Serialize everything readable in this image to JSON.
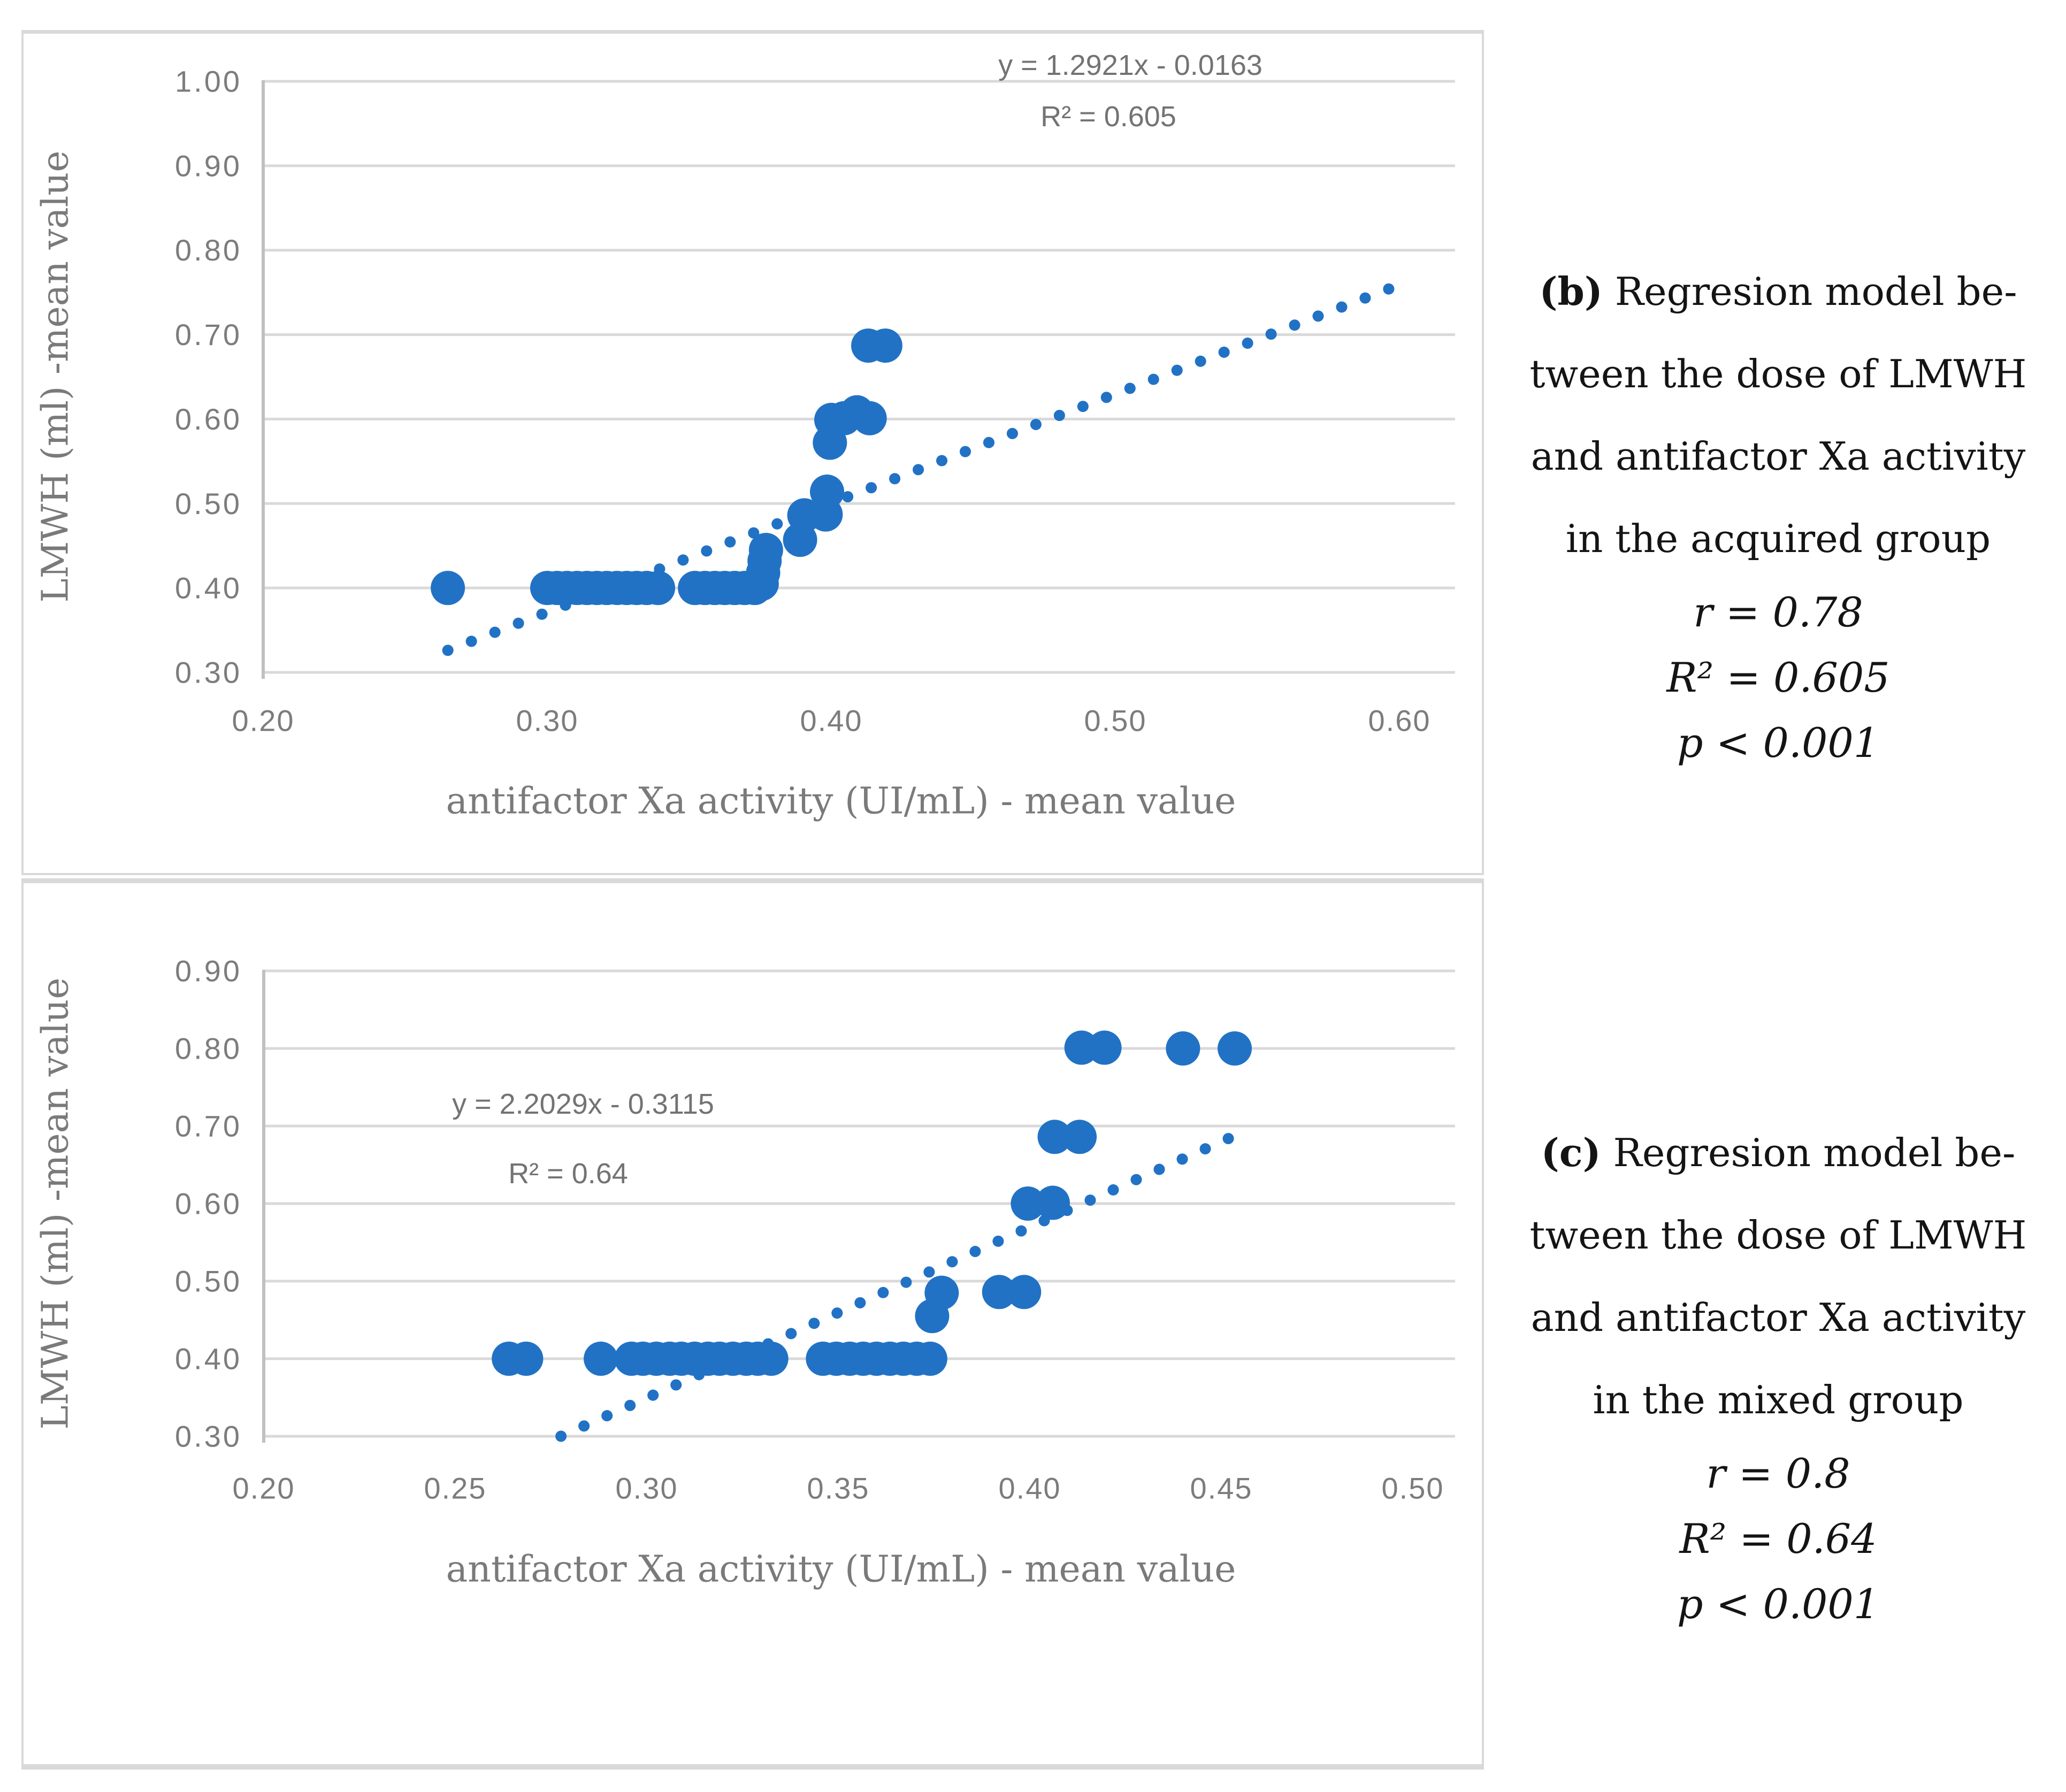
{
  "annotations": {
    "b": {
      "tag": "(b)",
      "lines": [
        " Regresion model be-",
        "tween the dose of LMWH",
        "and antifactor Xa activity",
        "in the acquired group"
      ],
      "stats": [
        "r = 0.78",
        "R² = 0.605",
        "p < 0.001"
      ]
    },
    "c": {
      "tag": "(c)",
      "lines": [
        " Regresion model be-",
        "tween the dose of LMWH",
        "and antifactor Xa activity",
        "in the mixed group"
      ],
      "stats": [
        "r = 0.8",
        "R² = 0.64",
        "p < 0.001"
      ]
    }
  },
  "colors": {
    "marker": "#2172c5",
    "trendline": "#2172c5",
    "gridline": "#d9d9d9",
    "axis_line": "#c0c0c0",
    "tick_text": "#7c7c7c",
    "axis_title_text": "#7a7a7a",
    "equation_text": "#737373"
  },
  "chart_data": [
    {
      "id": "b",
      "type": "scatter",
      "title": "",
      "xlabel": "antifactor Xa activity (UI/mL) - mean value",
      "ylabel": "LMWH (ml) -mean value",
      "xlim": [
        0.2,
        0.6
      ],
      "ylim": [
        0.3,
        1.0
      ],
      "grid": true,
      "xticks": {
        "values": [
          0.2,
          0.3,
          0.4,
          0.5,
          0.6
        ],
        "labels": [
          "0.20",
          "0.30",
          "0.40",
          "0.50",
          "0.60"
        ]
      },
      "yticks": {
        "values": [
          1.0,
          0.9,
          0.8,
          0.7,
          0.6,
          0.5,
          0.4,
          0.3
        ],
        "labels": [
          "1.00",
          "0.90",
          "0.80",
          "0.70",
          "0.60",
          "0.50",
          "0.40",
          "0.30"
        ]
      },
      "equation": "y = 1.2921x - 0.0163",
      "r2_label": "R² = 0.605",
      "trendline": {
        "slope": 1.2921,
        "intercept": -0.0163,
        "x_start": 0.265,
        "x_end": 0.6,
        "style": "dotted"
      },
      "points": [
        [
          0.265,
          0.4
        ],
        [
          0.3,
          0.4
        ],
        [
          0.3035,
          0.4
        ],
        [
          0.307,
          0.4
        ],
        [
          0.3105,
          0.4
        ],
        [
          0.314,
          0.4
        ],
        [
          0.3175,
          0.4
        ],
        [
          0.321,
          0.4
        ],
        [
          0.3245,
          0.4
        ],
        [
          0.328,
          0.4
        ],
        [
          0.3315,
          0.4
        ],
        [
          0.335,
          0.4
        ],
        [
          0.339,
          0.4
        ],
        [
          0.352,
          0.4
        ],
        [
          0.3555,
          0.4
        ],
        [
          0.359,
          0.4
        ],
        [
          0.3625,
          0.4
        ],
        [
          0.366,
          0.4
        ],
        [
          0.3695,
          0.4
        ],
        [
          0.373,
          0.4
        ],
        [
          0.3755,
          0.405
        ],
        [
          0.376,
          0.418
        ],
        [
          0.3765,
          0.432
        ],
        [
          0.377,
          0.445
        ],
        [
          0.389,
          0.457
        ],
        [
          0.3905,
          0.486
        ],
        [
          0.398,
          0.487
        ],
        [
          0.3985,
          0.514
        ],
        [
          0.3995,
          0.572
        ],
        [
          0.4,
          0.599
        ],
        [
          0.4045,
          0.601
        ],
        [
          0.409,
          0.608
        ],
        [
          0.4135,
          0.601
        ],
        [
          0.413,
          0.687
        ],
        [
          0.419,
          0.687
        ]
      ]
    },
    {
      "id": "c",
      "type": "scatter",
      "title": "",
      "xlabel": "antifactor Xa activity (UI/mL) - mean value",
      "ylabel": "LMWH (ml) -mean value",
      "xlim": [
        0.2,
        0.5
      ],
      "ylim": [
        0.3,
        0.9
      ],
      "grid": true,
      "xticks": {
        "values": [
          0.2,
          0.25,
          0.3,
          0.35,
          0.4,
          0.45,
          0.5
        ],
        "labels": [
          "0.20",
          "0.25",
          "0.30",
          "0.35",
          "0.40",
          "0.45",
          "0.50"
        ]
      },
      "yticks": {
        "values": [
          0.9,
          0.8,
          0.7,
          0.6,
          0.5,
          0.4,
          0.3
        ],
        "labels": [
          "0.90",
          "0.80",
          "0.70",
          "0.60",
          "0.50",
          "0.40",
          "0.30"
        ]
      },
      "equation": "y = 2.2029x - 0.3115",
      "r2_label": "R² = 0.64",
      "trendline": {
        "slope": 2.2029,
        "intercept": -0.3115,
        "x_start": 0.2776,
        "x_end": 0.457,
        "style": "dotted"
      },
      "points": [
        [
          0.264,
          0.4
        ],
        [
          0.2685,
          0.4
        ],
        [
          0.288,
          0.4
        ],
        [
          0.296,
          0.4
        ],
        [
          0.299,
          0.4
        ],
        [
          0.3025,
          0.4
        ],
        [
          0.306,
          0.4
        ],
        [
          0.309,
          0.4
        ],
        [
          0.3125,
          0.4
        ],
        [
          0.316,
          0.4
        ],
        [
          0.319,
          0.4
        ],
        [
          0.3225,
          0.4
        ],
        [
          0.326,
          0.4
        ],
        [
          0.329,
          0.4
        ],
        [
          0.3325,
          0.4
        ],
        [
          0.346,
          0.4
        ],
        [
          0.3495,
          0.4
        ],
        [
          0.353,
          0.4
        ],
        [
          0.3565,
          0.4
        ],
        [
          0.36,
          0.4
        ],
        [
          0.3635,
          0.4
        ],
        [
          0.367,
          0.4
        ],
        [
          0.3705,
          0.4
        ],
        [
          0.374,
          0.4
        ],
        [
          0.3745,
          0.455
        ],
        [
          0.377,
          0.485
        ],
        [
          0.392,
          0.486
        ],
        [
          0.3985,
          0.486
        ],
        [
          0.3995,
          0.6
        ],
        [
          0.406,
          0.601
        ],
        [
          0.4065,
          0.686
        ],
        [
          0.413,
          0.686
        ],
        [
          0.4135,
          0.801
        ],
        [
          0.4195,
          0.801
        ],
        [
          0.44,
          0.8
        ],
        [
          0.4535,
          0.8
        ]
      ]
    }
  ]
}
